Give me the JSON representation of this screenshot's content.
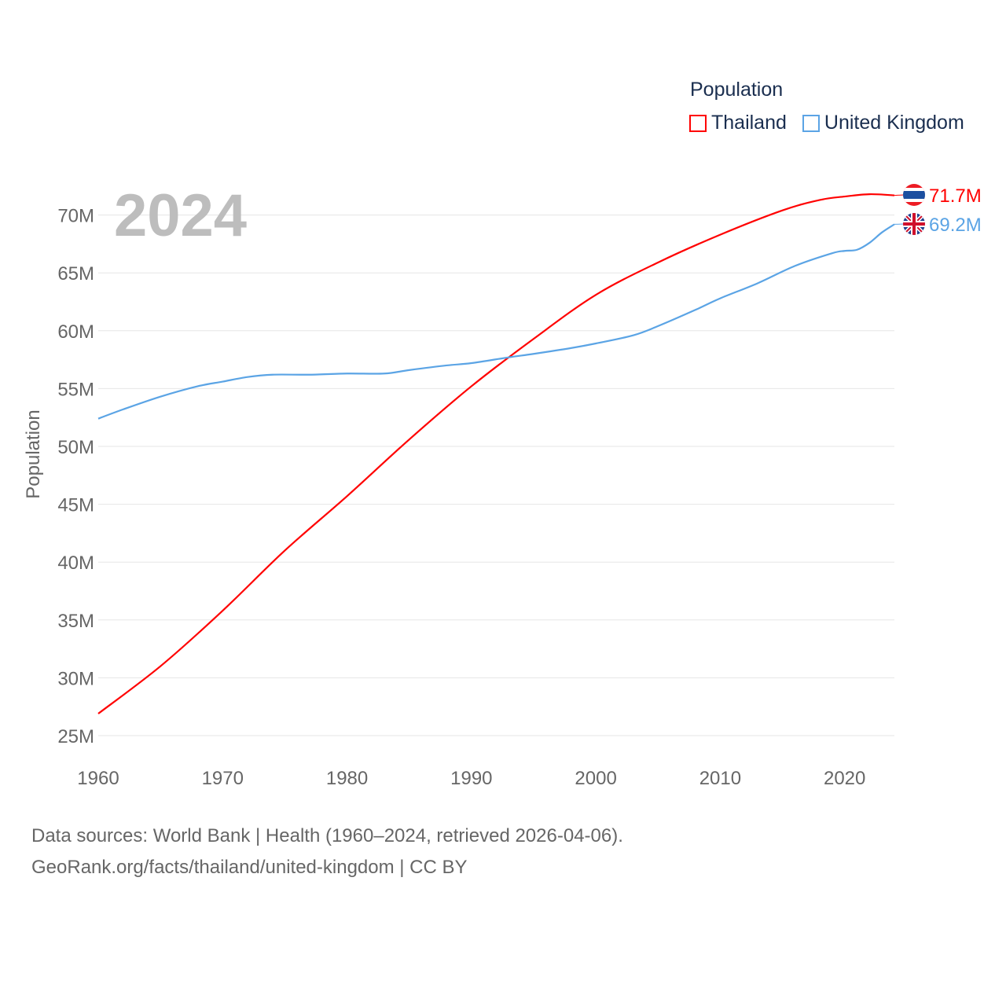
{
  "chart_data": {
    "type": "line",
    "title": "Population",
    "year_label": "2024",
    "ylabel": "Population",
    "xlabel": "",
    "xlim": [
      1960,
      2024
    ],
    "ylim": [
      25,
      72
    ],
    "yticks": [
      25,
      30,
      35,
      40,
      45,
      50,
      55,
      60,
      65,
      70
    ],
    "ytick_labels": [
      "25M",
      "30M",
      "35M",
      "40M",
      "45M",
      "50M",
      "55M",
      "60M",
      "65M",
      "70M"
    ],
    "xticks": [
      1960,
      1970,
      1980,
      1990,
      2000,
      2010,
      2020
    ],
    "xtick_labels": [
      "1960",
      "1970",
      "1980",
      "1990",
      "2000",
      "2010",
      "2020"
    ],
    "grid": true,
    "legend_position": "top-right",
    "series": [
      {
        "name": "Thailand",
        "color": "#ff0000",
        "end_label": "71.7M",
        "flag": "thailand-flag",
        "x": [
          1960,
          1965,
          1970,
          1975,
          1980,
          1985,
          1990,
          1995,
          2000,
          2005,
          2010,
          2015,
          2018,
          2020,
          2022,
          2024
        ],
        "values": [
          26.9,
          31.0,
          35.8,
          41.0,
          45.7,
          50.6,
          55.2,
          59.3,
          63.1,
          65.9,
          68.3,
          70.4,
          71.3,
          71.6,
          71.8,
          71.7
        ]
      },
      {
        "name": "United Kingdom",
        "color": "#5ba4e5",
        "end_label": "69.2M",
        "flag": "uk-flag",
        "x": [
          1960,
          1962,
          1965,
          1968,
          1970,
          1972,
          1974,
          1977,
          1980,
          1983,
          1985,
          1988,
          1990,
          1993,
          1995,
          1998,
          2000,
          2003,
          2005,
          2008,
          2010,
          2013,
          2016,
          2019,
          2020,
          2021,
          2022,
          2023,
          2024
        ],
        "values": [
          52.4,
          53.2,
          54.3,
          55.2,
          55.6,
          56.0,
          56.2,
          56.2,
          56.3,
          56.3,
          56.6,
          57.0,
          57.2,
          57.7,
          58.0,
          58.5,
          58.9,
          59.6,
          60.4,
          61.8,
          62.8,
          64.1,
          65.6,
          66.7,
          66.9,
          67.0,
          67.6,
          68.5,
          69.2
        ]
      }
    ]
  },
  "footer": {
    "line1": "Data sources: World Bank | Health (1960–2024, retrieved 2026-04-06).",
    "line2": "GeoRank.org/facts/thailand/united-kingdom | CC BY"
  }
}
